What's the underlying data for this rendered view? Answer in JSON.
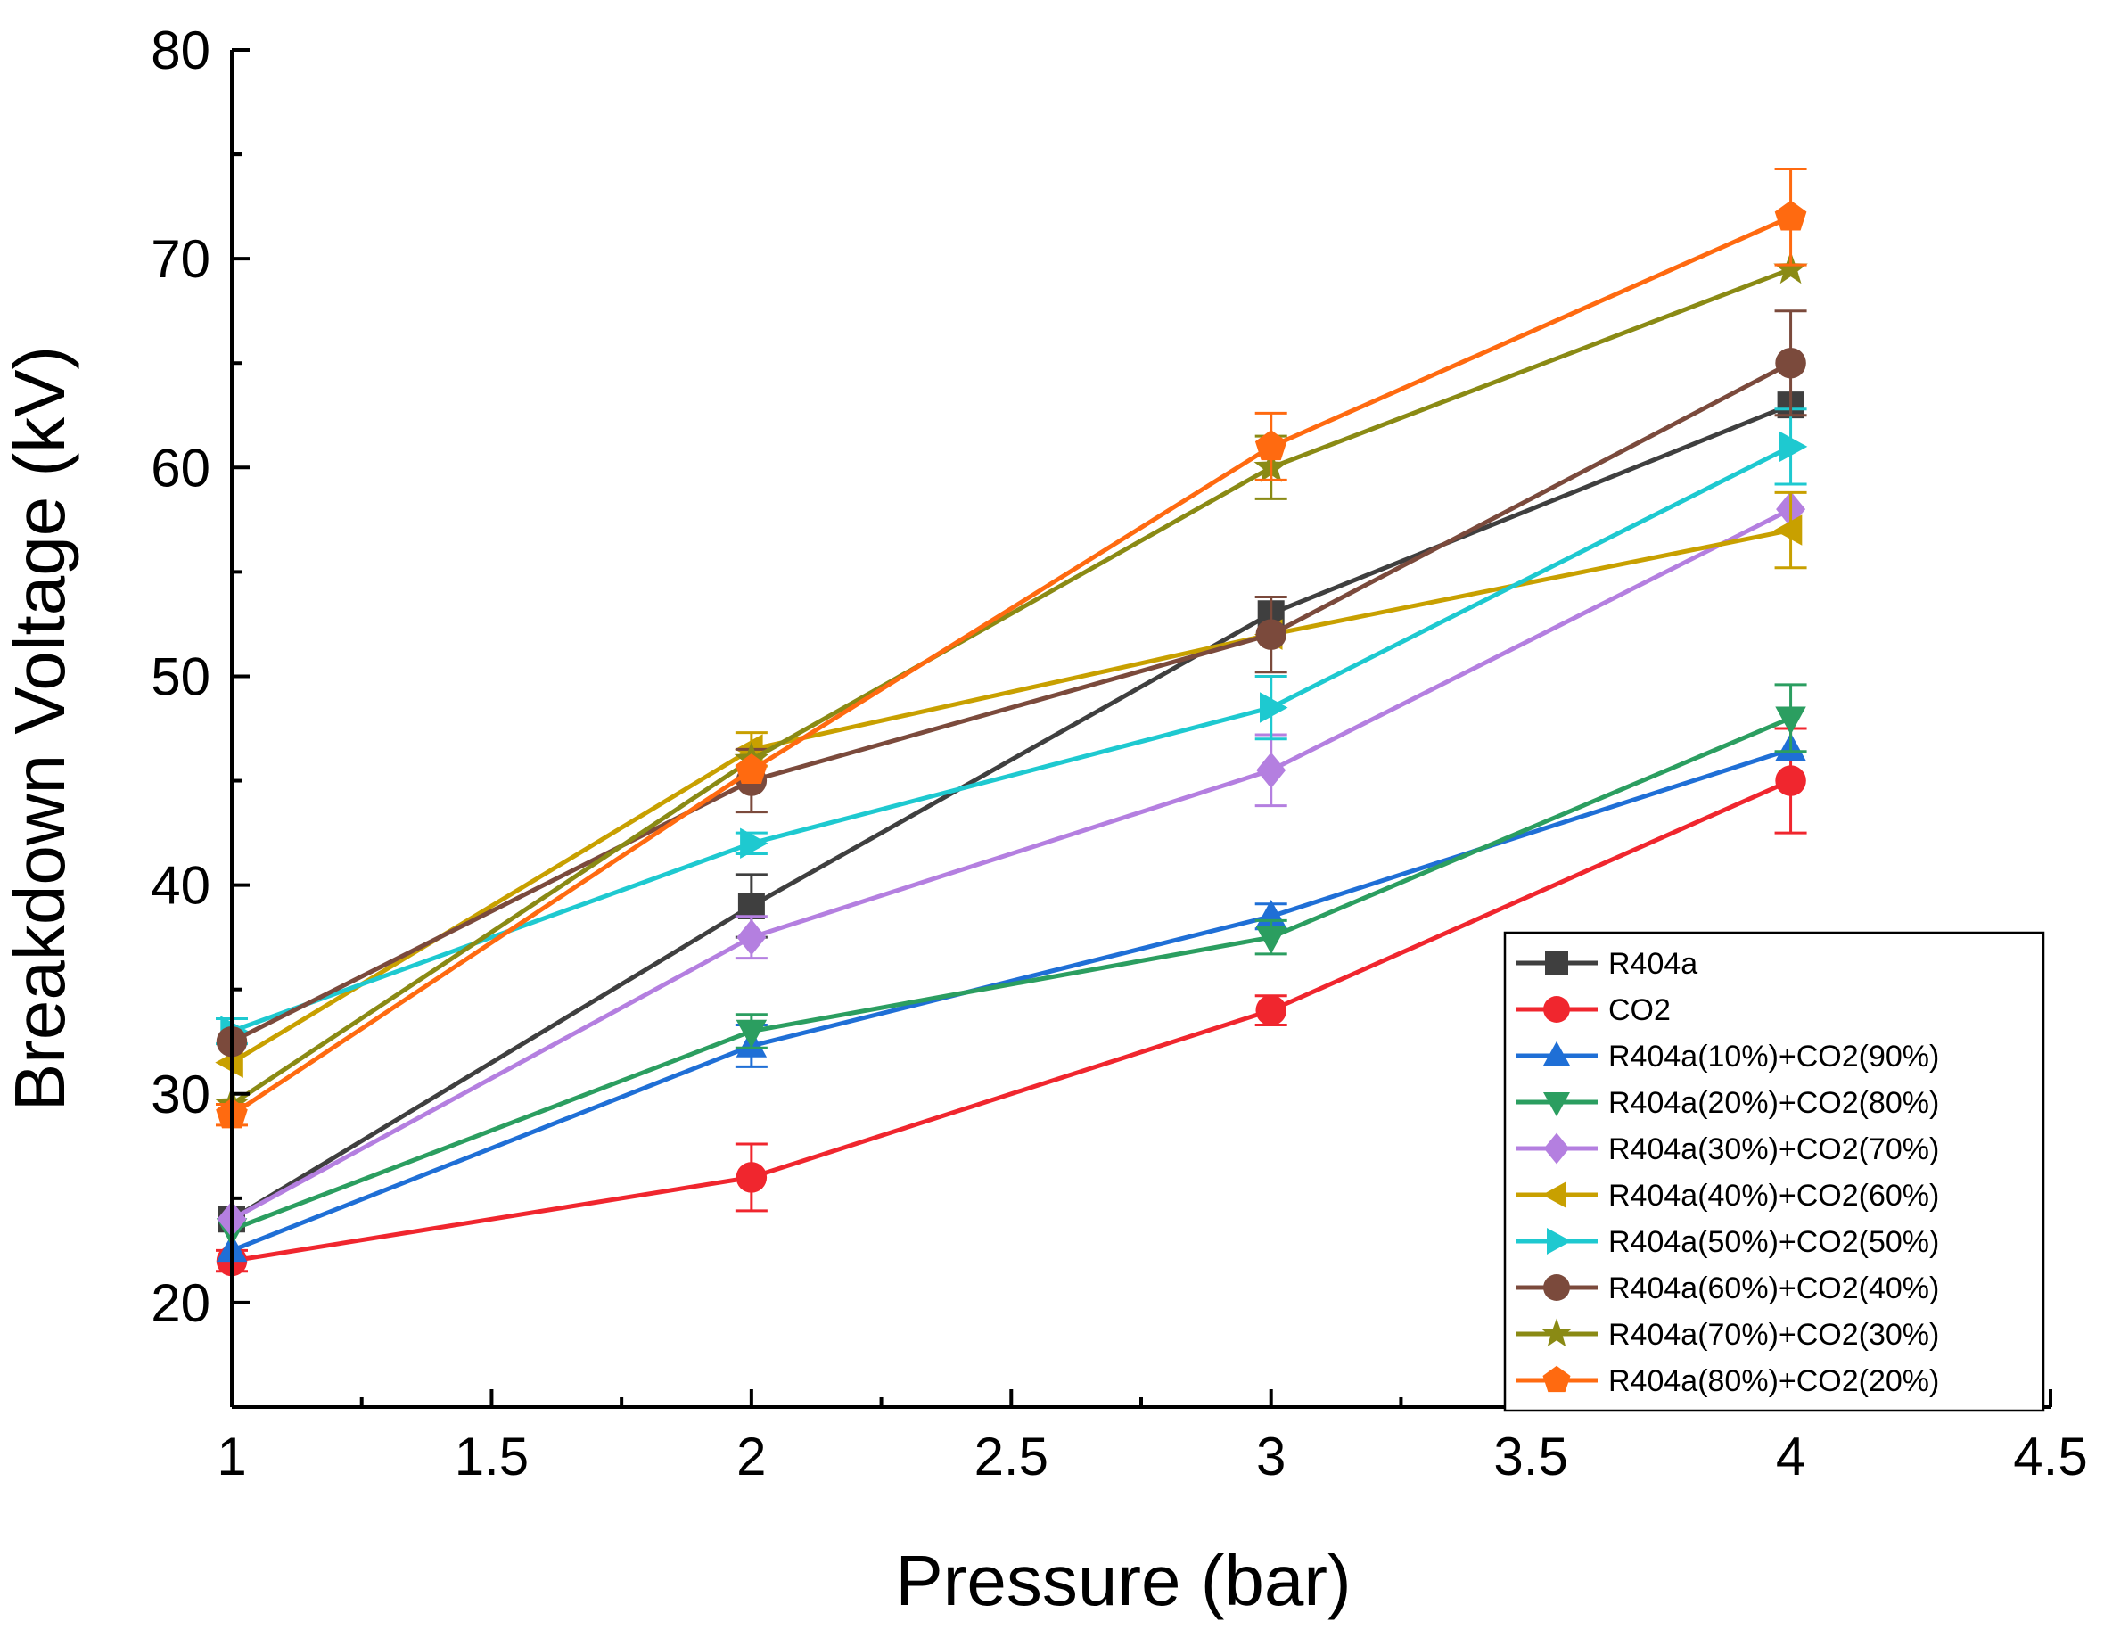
{
  "chart_data": {
    "type": "line",
    "xlabel": "Pressure (bar)",
    "ylabel": "Breakdown Voltage (kV)",
    "xlim": [
      1,
      4.5
    ],
    "ylim": [
      15,
      80
    ],
    "xticks": [
      "1",
      "1.5",
      "2",
      "2.5",
      "3",
      "3.5",
      "4",
      "4.5"
    ],
    "yticks": [
      "20",
      "30",
      "40",
      "50",
      "60",
      "70",
      "80"
    ],
    "legend_position": "bottom-right",
    "x": [
      1,
      2,
      3,
      4
    ],
    "series": [
      {
        "name": "R404a",
        "color": "#3f3f3f",
        "marker": "square",
        "values": [
          24,
          39,
          53,
          63
        ],
        "errors": [
          0,
          1.5,
          0,
          0
        ]
      },
      {
        "name": "CO2",
        "color": "#f0262e",
        "marker": "circle",
        "values": [
          22,
          26,
          34,
          45
        ],
        "errors": [
          0.5,
          1.6,
          0.7,
          2.5
        ]
      },
      {
        "name": "R404a(10%)+CO2(90%)",
        "color": "#1f6fd6",
        "marker": "triangle-up",
        "values": [
          22.5,
          32.3,
          38.5,
          46.5
        ],
        "errors": [
          0,
          1,
          0.6,
          0
        ]
      },
      {
        "name": "R404a(20%)+CO2(80%)",
        "color": "#2b9e60",
        "marker": "triangle-down",
        "values": [
          23.5,
          33,
          37.5,
          48
        ],
        "errors": [
          0,
          0.8,
          0.8,
          1.6
        ]
      },
      {
        "name": "R404a(30%)+CO2(70%)",
        "color": "#b47fe0",
        "marker": "diamond",
        "values": [
          24,
          37.5,
          45.5,
          58
        ],
        "errors": [
          0,
          1,
          1.7,
          0
        ]
      },
      {
        "name": "R404a(40%)+CO2(60%)",
        "color": "#c8a000",
        "marker": "triangle-left",
        "values": [
          31.5,
          46.5,
          52,
          57
        ],
        "errors": [
          0,
          0.8,
          0,
          1.8
        ]
      },
      {
        "name": "R404a(50%)+CO2(50%)",
        "color": "#1ec9d0",
        "marker": "triangle-right",
        "values": [
          33,
          42,
          48.5,
          61
        ],
        "errors": [
          0.6,
          0.5,
          1.5,
          1.8
        ]
      },
      {
        "name": "R404a(60%)+CO2(40%)",
        "color": "#7b4a3c",
        "marker": "circle",
        "values": [
          32.5,
          45,
          52,
          65
        ],
        "errors": [
          0,
          1.5,
          1.8,
          2.5
        ]
      },
      {
        "name": "R404a(70%)+CO2(30%)",
        "color": "#8a8a14",
        "marker": "star",
        "values": [
          29.5,
          46,
          60,
          69.5
        ],
        "errors": [
          0,
          0,
          1.5,
          0
        ]
      },
      {
        "name": "R404a(80%)+CO2(20%)",
        "color": "#ff6a10",
        "marker": "pentagon",
        "values": [
          29,
          45.5,
          61,
          72
        ],
        "errors": [
          0.5,
          0,
          1.6,
          2.3
        ]
      }
    ]
  }
}
